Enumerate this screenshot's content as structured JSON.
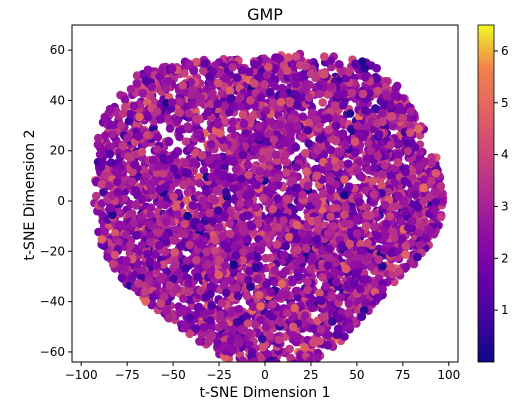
{
  "chart_data": {
    "type": "scatter",
    "title": "GMP",
    "xlabel": "t-SNE Dimension 1",
    "ylabel": "t-SNE Dimension 2",
    "xlim": [
      -105,
      105
    ],
    "ylim": [
      -64,
      70
    ],
    "xticks": [
      -100,
      -75,
      -50,
      -25,
      0,
      25,
      50,
      75,
      100
    ],
    "yticks": [
      -60,
      -40,
      -20,
      0,
      20,
      40,
      60
    ],
    "grid": false,
    "colorbar": {
      "label": "",
      "range": [
        0,
        6.5
      ],
      "ticks": [
        1,
        2,
        3,
        4,
        5,
        6
      ],
      "colormap": "plasma"
    },
    "point_cloud": {
      "center": [
        0,
        1
      ],
      "radii": [
        95,
        62
      ],
      "count": 4500,
      "value_mean": 2.6,
      "value_sd": 0.9,
      "value_range": [
        0.2,
        6.3
      ],
      "annotation": "approximate distribution; individual points not legible"
    }
  }
}
